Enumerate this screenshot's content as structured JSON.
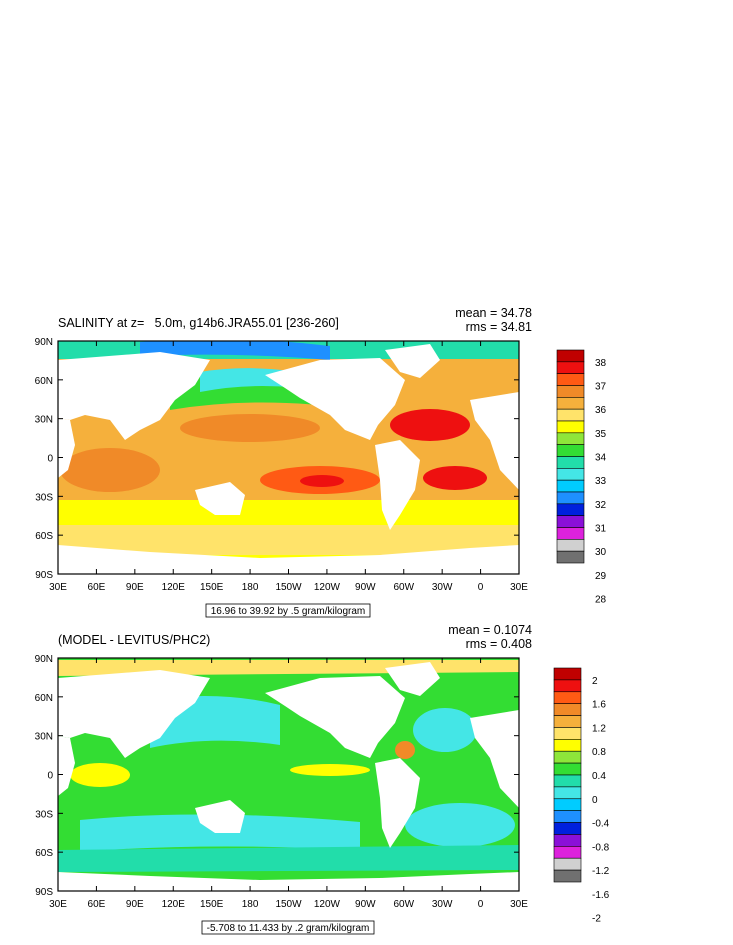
{
  "chart_data": [
    {
      "type": "heatmap",
      "title": "SALINITY at z=   5.0m, g14b6.JRA55.01 [236-260]",
      "stats": [
        "mean = 34.78",
        "rms = 34.81"
      ],
      "subtitle": "16.96 to 39.92 by .5 gram/kilogram",
      "x_ticks": [
        "30E",
        "60E",
        "90E",
        "120E",
        "150E",
        "180",
        "150W",
        "120W",
        "90W",
        "60W",
        "30W",
        "0",
        "30E"
      ],
      "y_ticks": [
        "90N",
        "60N",
        "30N",
        "0",
        "30S",
        "60S",
        "90S"
      ],
      "colorbar": {
        "labels": [
          "38",
          "37",
          "36",
          "35",
          "34",
          "33",
          "32",
          "31",
          "30",
          "29",
          "28"
        ],
        "colors": [
          "#c00000",
          "#ee1010",
          "#ff5a14",
          "#f08a28",
          "#f5b03c",
          "#ffe36a",
          "#ffff00",
          "#8ee63a",
          "#33dd33",
          "#22ddaa",
          "#44e6e6",
          "#00ccff",
          "#1e90ff",
          "#0020dd",
          "#8a10d8",
          "#dd22dd",
          "#d0d0d0",
          "#707070"
        ]
      }
    },
    {
      "type": "heatmap",
      "title": "(MODEL - LEVITUS/PHC2)",
      "stats": [
        "mean = 0.1074",
        "rms = 0.408"
      ],
      "subtitle": "-5.708 to 11.433 by .2 gram/kilogram",
      "x_ticks": [
        "30E",
        "60E",
        "90E",
        "120E",
        "150E",
        "180",
        "150W",
        "120W",
        "90W",
        "60W",
        "30W",
        "0",
        "30E"
      ],
      "y_ticks": [
        "90N",
        "60N",
        "30N",
        "0",
        "30S",
        "60S",
        "90S"
      ],
      "colorbar": {
        "labels": [
          "2",
          "1.6",
          "1.2",
          "0.8",
          "0.4",
          "0",
          "-0.4",
          "-0.8",
          "-1.2",
          "-1.6",
          "-2"
        ],
        "colors": [
          "#c00000",
          "#ee1010",
          "#ff5a14",
          "#f08a28",
          "#f5b03c",
          "#ffe36a",
          "#ffff00",
          "#8ee63a",
          "#33dd33",
          "#22ddaa",
          "#44e6e6",
          "#00ccff",
          "#1e90ff",
          "#0020dd",
          "#8a10d8",
          "#dd22dd",
          "#d0d0d0",
          "#707070"
        ]
      }
    }
  ]
}
